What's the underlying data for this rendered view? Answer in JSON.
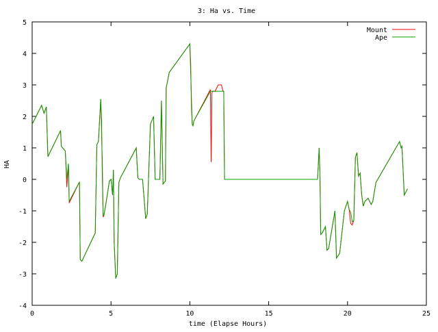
{
  "chart_data": {
    "type": "line",
    "title": "3: Ha vs. Time",
    "xlabel": "time (Elapse Hours)",
    "ylabel": "HA",
    "xlim": [
      0,
      25
    ],
    "ylim": [
      -4,
      5
    ],
    "xticks": [
      0,
      5,
      10,
      15,
      20,
      25
    ],
    "yticks": [
      -4,
      -3,
      -2,
      -1,
      0,
      1,
      2,
      3,
      4,
      5
    ],
    "grid": false,
    "legend_position": "top-right",
    "series": [
      {
        "name": "Mount",
        "color": "#ff0000",
        "x": [
          0,
          0.6,
          0.75,
          0.9,
          1.0,
          1.8,
          1.85,
          2.1,
          2.2,
          2.3,
          2.35,
          3.0,
          3.05,
          3.15,
          4.0,
          4.1,
          4.2,
          4.35,
          4.4,
          4.45,
          4.5,
          4.55,
          4.6,
          4.7,
          4.9,
          5.0,
          5.1,
          5.15,
          5.2,
          5.3,
          5.4,
          5.5,
          5.6,
          6.6,
          6.7,
          6.8,
          7.0,
          7.2,
          7.3,
          7.5,
          7.7,
          7.8,
          8.1,
          8.2,
          8.3,
          8.45,
          8.5,
          8.7,
          10.0,
          10.05,
          10.1,
          10.15,
          10.2,
          10.25,
          11.3,
          11.35,
          11.4,
          11.45,
          11.6,
          11.8,
          11.9,
          12.0,
          12.1,
          12.15,
          12.2,
          12.25,
          12.3,
          12.35,
          18.1,
          18.15,
          18.2,
          18.25,
          18.3,
          18.4,
          18.6,
          18.7,
          18.8,
          19.2,
          19.3,
          19.5,
          19.8,
          20.0,
          20.1,
          20.2,
          20.3,
          20.4,
          20.5,
          20.6,
          20.7,
          20.8,
          20.9,
          21.0,
          21.1,
          21.3,
          21.5,
          21.6,
          21.7,
          21.8,
          23.3,
          23.4,
          23.45,
          23.6,
          23.8
        ],
        "y": [
          1.75,
          2.35,
          2.1,
          2.3,
          0.72,
          1.55,
          1.05,
          0.9,
          -0.25,
          0.5,
          -0.75,
          -0.08,
          -2.55,
          -2.6,
          -1.7,
          1.1,
          1.2,
          2.55,
          1.55,
          0.55,
          -1.2,
          -1.15,
          -1.0,
          -0.7,
          -0.05,
          0.0,
          -0.5,
          0.3,
          -2.0,
          -3.15,
          -3.0,
          -0.1,
          0.05,
          1.0,
          0.05,
          0.0,
          0.0,
          -1.25,
          -1.1,
          1.75,
          2.0,
          0.0,
          0.0,
          2.5,
          -0.15,
          -0.05,
          2.9,
          3.4,
          4.3,
          3.7,
          2.3,
          1.75,
          1.7,
          1.85,
          2.85,
          0.55,
          2.75,
          2.8,
          2.8,
          3.0,
          3.0,
          3.0,
          2.8,
          2.8,
          0.0,
          0.0,
          0.0,
          0.0,
          0.0,
          0.5,
          1.0,
          0.2,
          -1.75,
          -1.7,
          -1.5,
          -2.25,
          -2.2,
          -1.0,
          -2.5,
          -2.35,
          -1.0,
          -0.7,
          -0.95,
          -1.4,
          -1.45,
          -1.3,
          0.7,
          0.85,
          0.1,
          0.2,
          -0.5,
          -0.85,
          -0.7,
          -0.6,
          -0.8,
          -0.7,
          -0.4,
          -0.1,
          1.2,
          1.0,
          1.05,
          -0.5,
          -0.3
        ]
      },
      {
        "name": "Ape",
        "color": "#00a000",
        "x": [
          0,
          0.6,
          0.75,
          0.9,
          1.0,
          1.8,
          1.85,
          2.1,
          2.2,
          2.3,
          2.35,
          3.0,
          3.05,
          3.15,
          4.0,
          4.1,
          4.2,
          4.35,
          4.4,
          4.45,
          4.5,
          4.55,
          4.6,
          4.7,
          4.9,
          5.0,
          5.1,
          5.15,
          5.2,
          5.3,
          5.4,
          5.5,
          5.6,
          6.6,
          6.7,
          6.8,
          7.0,
          7.2,
          7.3,
          7.5,
          7.7,
          7.8,
          8.1,
          8.2,
          8.3,
          8.45,
          8.5,
          8.7,
          10.0,
          10.05,
          10.1,
          10.15,
          10.2,
          10.25,
          11.3,
          11.35,
          11.4,
          11.45,
          11.6,
          11.8,
          11.9,
          12.0,
          12.1,
          12.15,
          12.2,
          12.25,
          12.3,
          12.35,
          18.1,
          18.15,
          18.2,
          18.25,
          18.3,
          18.4,
          18.6,
          18.7,
          18.8,
          19.2,
          19.3,
          19.5,
          19.8,
          20.0,
          20.1,
          20.2,
          20.3,
          20.4,
          20.5,
          20.6,
          20.7,
          20.8,
          20.9,
          21.0,
          21.1,
          21.3,
          21.5,
          21.6,
          21.7,
          21.8,
          23.3,
          23.4,
          23.45,
          23.6,
          23.8
        ],
        "y": [
          1.75,
          2.35,
          2.1,
          2.3,
          0.72,
          1.55,
          1.05,
          0.9,
          0.0,
          0.5,
          -0.7,
          -0.08,
          -2.55,
          -2.6,
          -1.7,
          1.1,
          1.2,
          2.55,
          1.9,
          0.1,
          -1.15,
          -1.15,
          -1.0,
          -0.7,
          -0.05,
          0.0,
          -0.5,
          0.3,
          -2.0,
          -3.15,
          -3.0,
          -0.1,
          0.05,
          1.0,
          0.05,
          0.0,
          0.0,
          -1.25,
          -1.1,
          1.75,
          2.0,
          0.0,
          0.0,
          2.5,
          -0.15,
          -0.05,
          2.9,
          3.4,
          4.3,
          3.4,
          2.6,
          1.75,
          1.7,
          1.85,
          2.8,
          2.8,
          2.8,
          2.8,
          2.8,
          2.8,
          2.8,
          2.8,
          2.8,
          2.8,
          0.0,
          0.0,
          0.0,
          0.0,
          0.0,
          0.5,
          1.0,
          0.2,
          -1.75,
          -1.7,
          -1.5,
          -2.25,
          -2.2,
          -1.0,
          -2.5,
          -2.35,
          -1.0,
          -0.7,
          -0.95,
          -1.05,
          -1.35,
          -1.3,
          0.7,
          0.85,
          0.1,
          0.2,
          -0.5,
          -0.85,
          -0.7,
          -0.6,
          -0.8,
          -0.7,
          -0.4,
          -0.1,
          1.2,
          1.0,
          1.05,
          -0.5,
          -0.3
        ]
      }
    ]
  }
}
